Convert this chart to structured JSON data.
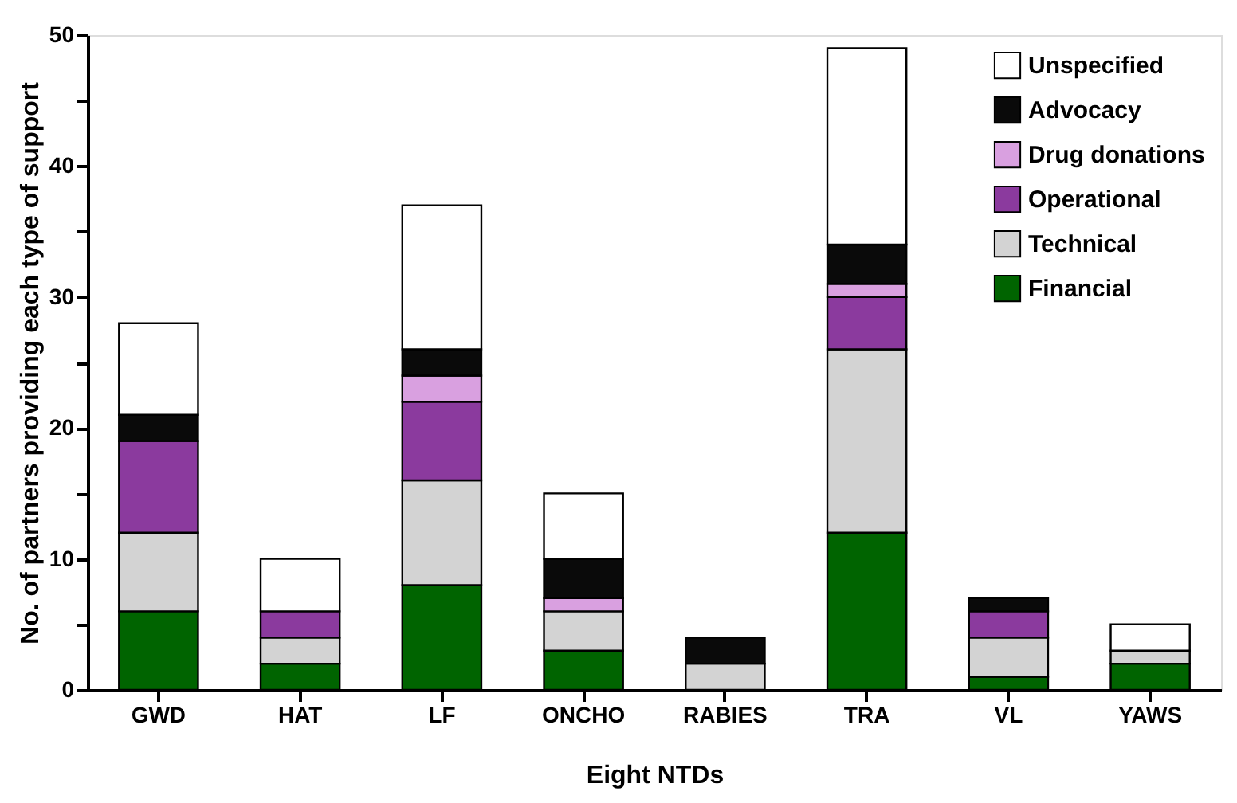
{
  "chart_data": {
    "type": "bar",
    "stacked": true,
    "xlabel": "Eight NTDs",
    "ylabel": "No. of partners providing each type of support",
    "categories": [
      "GWD",
      "HAT",
      "LF",
      "ONCHO",
      "RABIES",
      "TRA",
      "VL",
      "YAWS"
    ],
    "series": [
      {
        "name": "Financial",
        "color": "#006400",
        "values": [
          6,
          2,
          8,
          3,
          0,
          12,
          1,
          2
        ]
      },
      {
        "name": "Technical",
        "color": "#d3d3d3",
        "values": [
          6,
          2,
          8,
          3,
          2,
          14,
          3,
          1
        ]
      },
      {
        "name": "Operational",
        "color": "#8b3a9e",
        "values": [
          7,
          2,
          6,
          0,
          0,
          4,
          2,
          0
        ]
      },
      {
        "name": "Drug donations",
        "color": "#d9a0e0",
        "values": [
          0,
          0,
          2,
          1,
          0,
          1,
          0,
          0
        ]
      },
      {
        "name": "Advocacy",
        "color": "#0a0a0a",
        "values": [
          2,
          0,
          2,
          3,
          2,
          3,
          1,
          0
        ]
      },
      {
        "name": "Unspecified",
        "color": "#ffffff",
        "values": [
          7,
          4,
          11,
          5,
          0,
          15,
          0,
          2
        ]
      }
    ],
    "ylim": [
      0,
      50
    ],
    "yticks": [
      0,
      {
        "value": 5,
        "label": null
      },
      10,
      {
        "value": 15,
        "label": null
      },
      20,
      {
        "value": 25,
        "label": null
      },
      30,
      {
        "value": 35,
        "label": null
      },
      40,
      {
        "value": 45,
        "label": null
      },
      50
    ],
    "grid": false,
    "legend": "top right"
  }
}
